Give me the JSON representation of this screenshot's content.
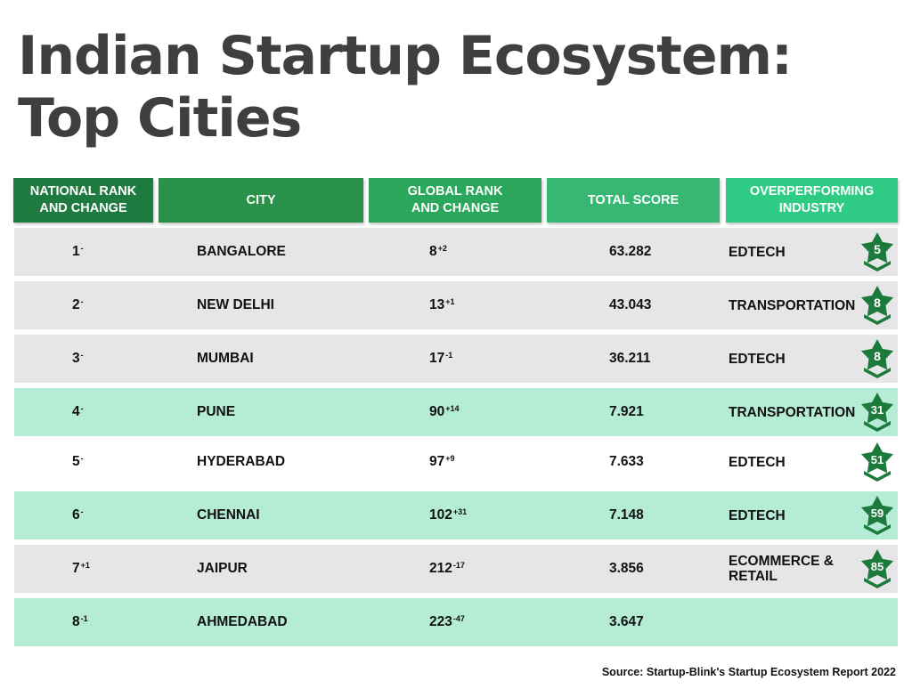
{
  "title": {
    "line1": "Indian Startup Ecosystem:",
    "line2": "Top Cities"
  },
  "headers": [
    {
      "label_line1": "NATIONAL RANK",
      "label_line2": "AND CHANGE",
      "color": "#1f7a3f"
    },
    {
      "label_line1": "CITY",
      "label_line2": "",
      "color": "#29914a"
    },
    {
      "label_line1": "GLOBAL RANK",
      "label_line2": "AND CHANGE",
      "color": "#2aa75a"
    },
    {
      "label_line1": "TOTAL SCORE",
      "label_line2": "",
      "color": "#36b874"
    },
    {
      "label_line1": "OVERPERFORMING",
      "label_line2": "INDUSTRY",
      "color": "#2fcb85"
    }
  ],
  "rows": [
    {
      "rank": "1",
      "rank_change": "-",
      "city": "BANGALORE",
      "global_rank": "8",
      "global_change": "+2",
      "score": "63.282",
      "industry": "EDTECH",
      "badge": "5",
      "bg": "#e6e6e8"
    },
    {
      "rank": "2",
      "rank_change": "-",
      "city": "NEW DELHI",
      "global_rank": "13",
      "global_change": "+1",
      "score": "43.043",
      "industry": "TRANSPORTATION",
      "badge": "8",
      "bg": "#e6e6e8"
    },
    {
      "rank": "3",
      "rank_change": "-",
      "city": "MUMBAI",
      "global_rank": "17",
      "global_change": "-1",
      "score": "36.211",
      "industry": "EDTECH",
      "badge": "8",
      "bg": "#e6e6e8"
    },
    {
      "rank": "4",
      "rank_change": "-",
      "city": "PUNE",
      "global_rank": "90",
      "global_change": "+14",
      "score": "7.921",
      "industry": "TRANSPORTATION",
      "badge": "31",
      "bg": "#b5ecd5"
    },
    {
      "rank": "5",
      "rank_change": "-",
      "city": "HYDERABAD",
      "global_rank": "97",
      "global_change": "+9",
      "score": "7.633",
      "industry": "EDTECH",
      "badge": "51",
      "bg": "#ffffff"
    },
    {
      "rank": "6",
      "rank_change": "-",
      "city": "CHENNAI",
      "global_rank": "102",
      "global_change": "+31",
      "score": "7.148",
      "industry": "EDTECH",
      "badge": "59",
      "bg": "#b5ecd5"
    },
    {
      "rank": "7",
      "rank_change": "+1",
      "city": "JAIPUR",
      "global_rank": "212",
      "global_change": "-17",
      "score": "3.856",
      "industry": "ECOMMERCE & RETAIL",
      "badge": "85",
      "bg": "#e6e6e8"
    },
    {
      "rank": "8",
      "rank_change": "-1",
      "city": "AHMEDABAD",
      "global_rank": "223",
      "global_change": "-47",
      "score": "3.647",
      "industry": "",
      "badge": "",
      "bg": "#b5ecd5"
    }
  ],
  "source": "Source: Startup-Blink's Startup Ecosystem Report 2022",
  "colors": {
    "badge_star": "#1c7a3c",
    "title": "#3f3f3f",
    "divider": "#b5ecd5"
  }
}
